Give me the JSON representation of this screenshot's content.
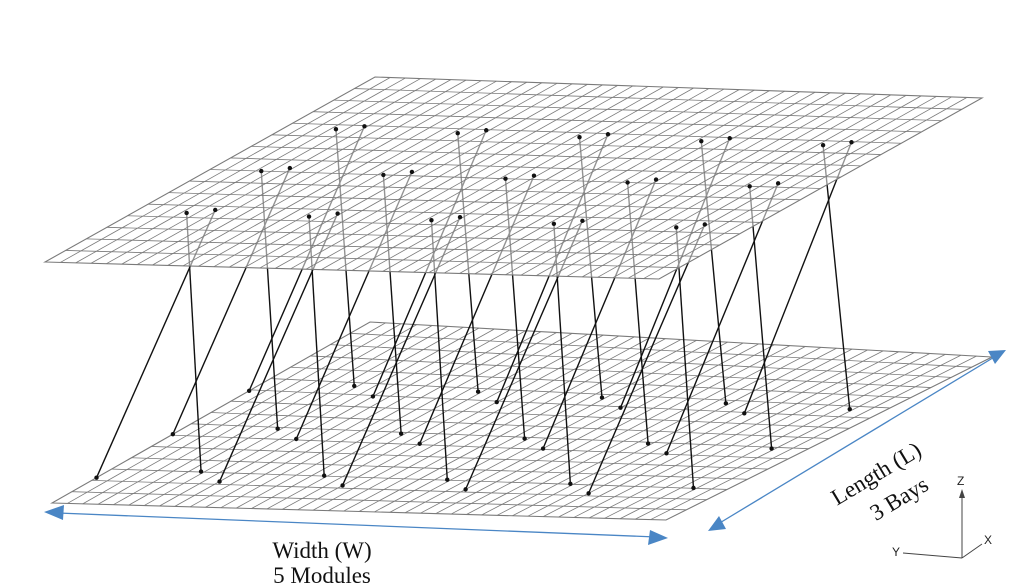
{
  "labels": {
    "width_line1": "Width (W)",
    "width_line2": "5 Modules",
    "length_line1": "Length (L)",
    "length_line2": "3 Bays"
  },
  "axis_triad": {
    "z": "Z",
    "y": "Y",
    "x": "X"
  },
  "colors": {
    "mesh": "#7a7a7a",
    "tendon": "#111111",
    "dimension_arrow": "#4a86c5",
    "text": "#111111"
  },
  "structure": {
    "modules_along_width": 5,
    "bays_along_length": 3,
    "tendons_per_module_per_bay": 2,
    "tendon_count": 30
  }
}
